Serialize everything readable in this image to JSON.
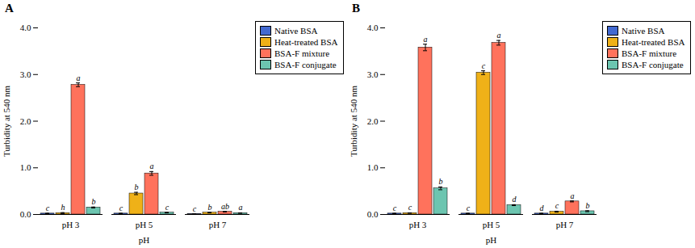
{
  "chart_data": [
    {
      "type": "bar",
      "title": "A",
      "categories": [
        "pH 3",
        "pH 5",
        "pH 7"
      ],
      "xlabel": "pH",
      "ylabel": "Turbidity at 540 nm",
      "ylim": [
        0,
        4
      ],
      "yticks": [
        0,
        1,
        2,
        3,
        4
      ],
      "grid": false,
      "legend": "upper right",
      "series": [
        {
          "name": "Native BSA",
          "values": [
            0.02,
            0.02,
            0.01
          ],
          "errors": [
            0.005,
            0.005,
            0.005
          ],
          "letters": [
            "c",
            "c",
            "c"
          ]
        },
        {
          "name": "Heat-treated BSA",
          "values": [
            0.03,
            0.45,
            0.04
          ],
          "errors": [
            0.01,
            0.025,
            0.005
          ],
          "letters": [
            "h",
            "b",
            "b"
          ]
        },
        {
          "name": "BSA-F mixture",
          "values": [
            2.78,
            0.88,
            0.06
          ],
          "errors": [
            0.04,
            0.04,
            0.005
          ],
          "letters": [
            "a",
            "a",
            "ab"
          ]
        },
        {
          "name": "BSA-F conjugate",
          "values": [
            0.15,
            0.04,
            0.03
          ],
          "errors": [
            0.01,
            0.005,
            0.005
          ],
          "letters": [
            "b",
            "c",
            "a"
          ]
        }
      ]
    },
    {
      "type": "bar",
      "title": "B",
      "categories": [
        "pH 3",
        "pH 5",
        "pH 7"
      ],
      "xlabel": "pH",
      "ylabel": "Turbidity at 540 nm",
      "ylim": [
        0,
        4
      ],
      "yticks": [
        0,
        1,
        2,
        3,
        4
      ],
      "grid": false,
      "legend": "upper right",
      "series": [
        {
          "name": "Native BSA",
          "values": [
            0.02,
            0.02,
            0.02
          ],
          "errors": [
            0.005,
            0.005,
            0.005
          ],
          "letters": [
            "c",
            "c",
            "d"
          ]
        },
        {
          "name": "Heat-treated BSA",
          "values": [
            0.03,
            3.04,
            0.06
          ],
          "errors": [
            0.005,
            0.04,
            0.01
          ],
          "letters": [
            "c",
            "c",
            "c"
          ]
        },
        {
          "name": "BSA-F mixture",
          "values": [
            3.58,
            3.68,
            0.28
          ],
          "errors": [
            0.07,
            0.05,
            0.01
          ],
          "letters": [
            "a",
            "a",
            "a"
          ]
        },
        {
          "name": "BSA-F conjugate",
          "values": [
            0.56,
            0.2,
            0.07
          ],
          "errors": [
            0.03,
            0.01,
            0.01
          ],
          "letters": [
            "b",
            "d",
            "b"
          ]
        }
      ]
    }
  ]
}
